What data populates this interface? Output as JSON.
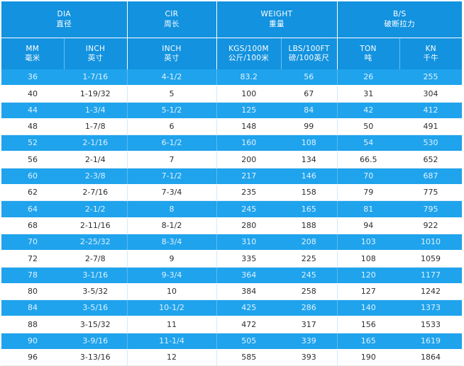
{
  "header": {
    "groups": [
      {
        "en": "DIA",
        "cn": "直径"
      },
      {
        "en": "CIR",
        "cn": "周长"
      },
      {
        "en": "WEIGHT",
        "cn": "重量"
      },
      {
        "en": "B/S",
        "cn": "破断拉力"
      }
    ],
    "columns": [
      {
        "en": "MM",
        "cn": "毫米"
      },
      {
        "en": "INCH",
        "cn": "英寸"
      },
      {
        "en": "INCH",
        "cn": "英寸"
      },
      {
        "en": "KGS/100M",
        "cn": "公斤/100米"
      },
      {
        "en": "LBS/100FT",
        "cn": "磅/100英尺"
      },
      {
        "en": "TON",
        "cn": "吨"
      },
      {
        "en": "KN",
        "cn": "千牛"
      }
    ]
  },
  "rows": [
    [
      "36",
      "1-7/16",
      "4-1/2",
      "83.2",
      "56",
      "26",
      "255"
    ],
    [
      "40",
      "1-19/32",
      "5",
      "100",
      "67",
      "31",
      "304"
    ],
    [
      "44",
      "1-3/4",
      "5-1/2",
      "125",
      "84",
      "42",
      "412"
    ],
    [
      "48",
      "1-7/8",
      "6",
      "148",
      "99",
      "50",
      "491"
    ],
    [
      "52",
      "2-1/16",
      "6-1/2",
      "160",
      "108",
      "54",
      "530"
    ],
    [
      "56",
      "2-1/4",
      "7",
      "200",
      "134",
      "66.5",
      "652"
    ],
    [
      "60",
      "2-3/8",
      "7-1/2",
      "217",
      "146",
      "70",
      "687"
    ],
    [
      "62",
      "2-7/16",
      "7-3/4",
      "235",
      "158",
      "79",
      "775"
    ],
    [
      "64",
      "2-1/2",
      "8",
      "245",
      "165",
      "81",
      "795"
    ],
    [
      "68",
      "2-11/16",
      "8-1/2",
      "280",
      "188",
      "94",
      "922"
    ],
    [
      "70",
      "2-25/32",
      "8-3/4",
      "310",
      "208",
      "103",
      "1010"
    ],
    [
      "72",
      "2-7/8",
      "9",
      "335",
      "225",
      "108",
      "1059"
    ],
    [
      "78",
      "3-1/16",
      "9-3/4",
      "364",
      "245",
      "120",
      "1177"
    ],
    [
      "80",
      "3-5/32",
      "10",
      "384",
      "258",
      "127",
      "1242"
    ],
    [
      "84",
      "3-5/16",
      "10-1/2",
      "425",
      "286",
      "140",
      "1373"
    ],
    [
      "88",
      "3-15/32",
      "11",
      "472",
      "317",
      "156",
      "1533"
    ],
    [
      "90",
      "3-9/16",
      "11-1/4",
      "505",
      "339",
      "165",
      "1619"
    ],
    [
      "96",
      "3-13/16",
      "12",
      "585",
      "393",
      "190",
      "1864"
    ]
  ],
  "colors": {
    "header_blue": "#1292df",
    "stripe_blue": "#1fa3ec",
    "white": "#ffffff",
    "text_dark": "#2e2e2e"
  }
}
